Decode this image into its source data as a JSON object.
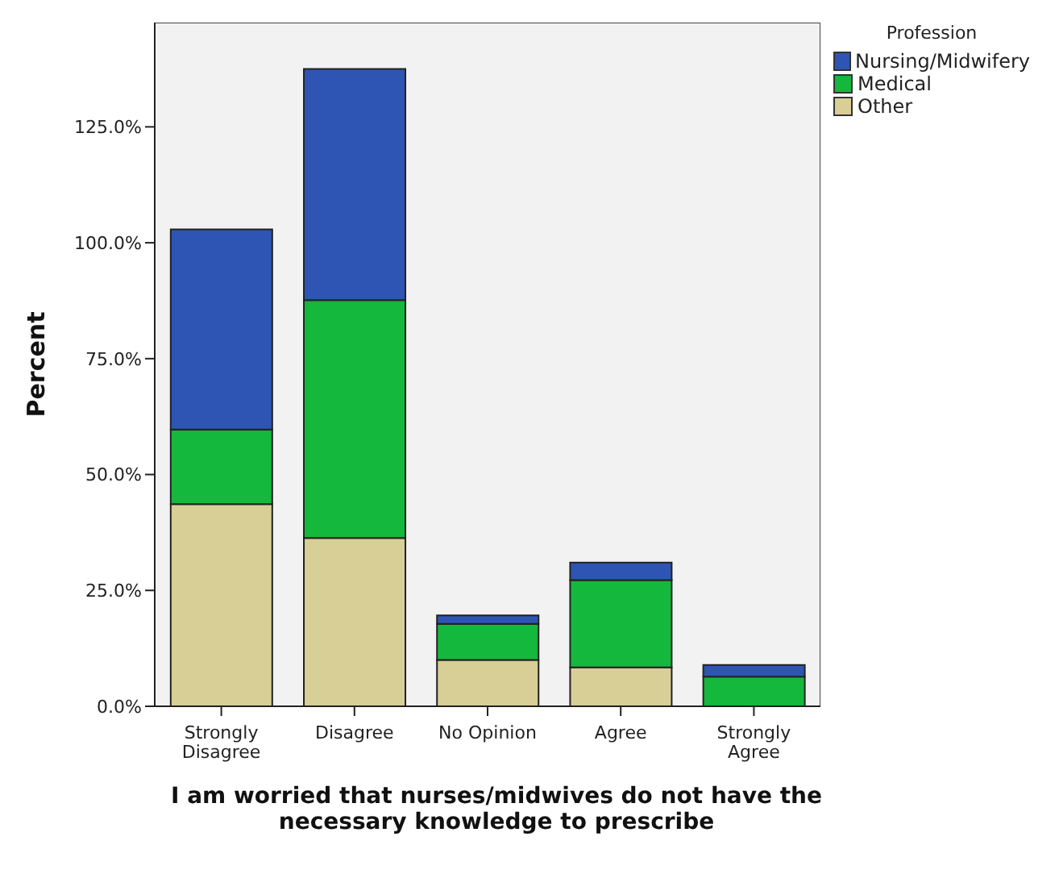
{
  "chart_data": {
    "type": "bar",
    "stacked": true,
    "categories": [
      "Strongly Disagree",
      "Disagree",
      "No Opinion",
      "Agree",
      "Strongly Agree"
    ],
    "series": [
      {
        "name": "Other",
        "color": "#d8cf97",
        "values": [
          43.6,
          36.3,
          10.0,
          8.4,
          0
        ]
      },
      {
        "name": "Medical",
        "color": "#14b83c",
        "values": [
          16.1,
          51.3,
          7.8,
          18.8,
          6.4
        ]
      },
      {
        "name": "Nursing/Midwifery",
        "color": "#2e55b3",
        "values": [
          43.2,
          49.9,
          1.8,
          3.8,
          2.5
        ]
      }
    ],
    "xlabel": "I am worried that nurses/midwives do not have the necessary knowledge to prescribe",
    "ylabel": "Percent",
    "legend_title": "Profession",
    "legend": "top right",
    "grid": false,
    "ylim": [
      0,
      147.5
    ],
    "yticks": [
      {
        "value": 0,
        "label": "0.0%"
      },
      {
        "value": 25,
        "label": "25.0%"
      },
      {
        "value": 50,
        "label": "50.0%"
      },
      {
        "value": 75,
        "label": "75.0%"
      },
      {
        "value": 100,
        "label": "100.0%"
      },
      {
        "value": 125,
        "label": "125.0%"
      }
    ]
  }
}
